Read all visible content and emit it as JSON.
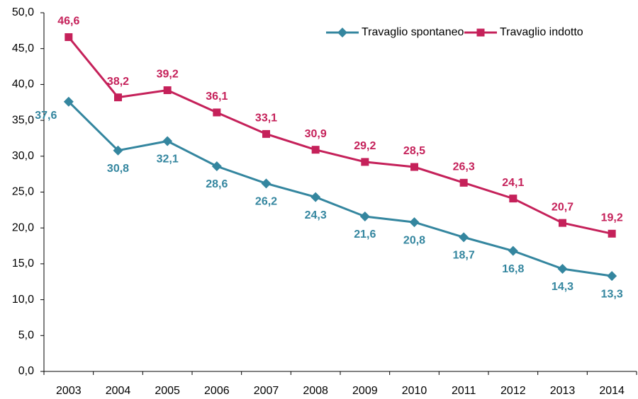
{
  "chart_data": {
    "type": "line",
    "categories": [
      "2003",
      "2004",
      "2005",
      "2006",
      "2007",
      "2008",
      "2009",
      "2010",
      "2011",
      "2012",
      "2013",
      "2014"
    ],
    "series": [
      {
        "name": "Travaglio spontaneo",
        "color": "#34869f",
        "marker": "diamond",
        "values": [
          37.6,
          30.8,
          32.1,
          28.6,
          26.2,
          24.3,
          21.6,
          20.8,
          18.7,
          16.8,
          14.3,
          13.3
        ],
        "value_labels": [
          "37,6",
          "30,8",
          "32,1",
          "28,6",
          "26,2",
          "24,3",
          "21,6",
          "20,8",
          "18,7",
          "16,8",
          "14,3",
          "13,3"
        ]
      },
      {
        "name": "Travaglio indotto",
        "color": "#c5215a",
        "marker": "square",
        "values": [
          46.6,
          38.2,
          39.2,
          36.1,
          33.1,
          30.9,
          29.2,
          28.5,
          26.3,
          24.1,
          20.7,
          19.2
        ],
        "value_labels": [
          "46,6",
          "38,2",
          "39,2",
          "36,1",
          "33,1",
          "30,9",
          "29,2",
          "28,5",
          "26,3",
          "24,1",
          "20,7",
          "19,2"
        ]
      }
    ],
    "ylim": [
      0,
      50
    ],
    "yticks": [
      {
        "value": 0,
        "label": "0,0"
      },
      {
        "value": 5,
        "label": "5,0"
      },
      {
        "value": 10,
        "label": "10,0"
      },
      {
        "value": 15,
        "label": "15,0"
      },
      {
        "value": 20,
        "label": "20,0"
      },
      {
        "value": 25,
        "label": "25,0"
      },
      {
        "value": 30,
        "label": "30,0"
      },
      {
        "value": 35,
        "label": "35,0"
      },
      {
        "value": 40,
        "label": "40,0"
      },
      {
        "value": 45,
        "label": "45,0"
      },
      {
        "value": 50,
        "label": "50,0"
      }
    ],
    "grid": false,
    "legend": "top-right"
  }
}
